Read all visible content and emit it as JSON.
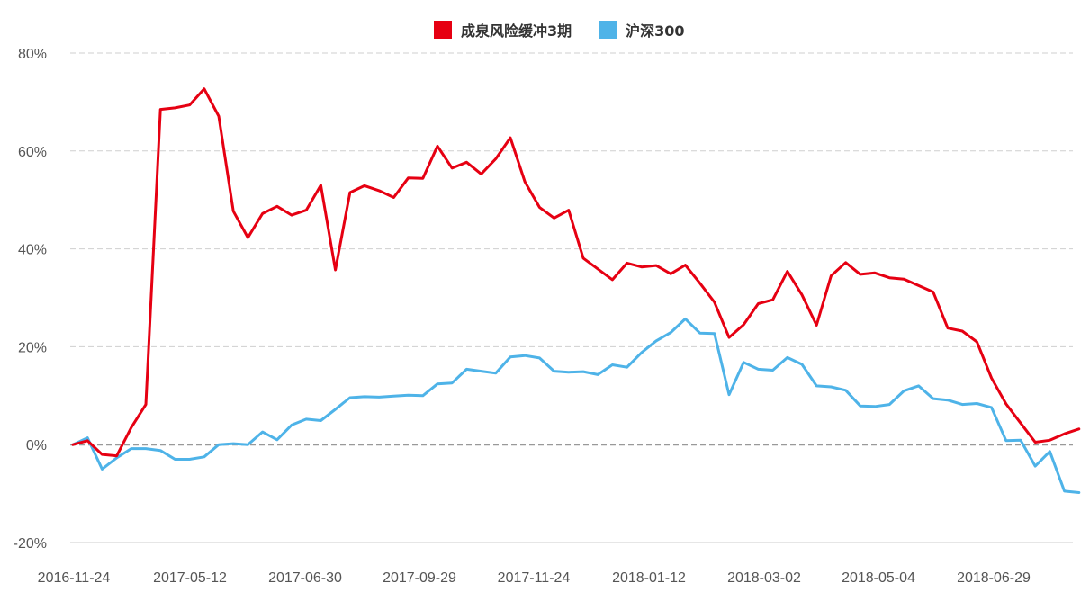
{
  "chart_data": {
    "type": "line",
    "title": "",
    "xlabel": "",
    "ylabel": "",
    "ylim": [
      -20,
      80
    ],
    "yticks": [
      -20,
      0,
      20,
      40,
      60,
      80
    ],
    "ytick_labels": [
      "-20%",
      "0%",
      "20%",
      "40%",
      "60%",
      "80%"
    ],
    "xtick_labels": [
      "2016-11-24",
      "2017-05-12",
      "2017-06-30",
      "2017-09-29",
      "2017-11-24",
      "2018-01-12",
      "2018-03-02",
      "2018-05-04",
      "2018-06-29"
    ],
    "grid": true,
    "legend_position": "top-center",
    "series": [
      {
        "name": "成泉风险缓冲3期",
        "color": "#e60012",
        "values": [
          0,
          0.8,
          -2,
          -2.3,
          3.5,
          8.2,
          68.5,
          68.8,
          69.4,
          72.7,
          67.1,
          47.7,
          42.3,
          47.2,
          48.7,
          46.9,
          47.9,
          53.0,
          35.7,
          51.5,
          52.9,
          51.9,
          50.5,
          54.5,
          54.4,
          61.0,
          56.5,
          57.7,
          55.3,
          58.4,
          62.7,
          53.7,
          48.5,
          46.3,
          47.9,
          38.1,
          35.9,
          33.7,
          37.1,
          36.3,
          36.6,
          34.9,
          36.7,
          33.0,
          29.1,
          21.9,
          24.5,
          28.8,
          29.6,
          35.4,
          30.6,
          24.4,
          34.5,
          37.2,
          34.8,
          35.1,
          34.1,
          33.8,
          32.5,
          31.2,
          23.8,
          23.2,
          21.0,
          13.6,
          8.3,
          4.4,
          0.5,
          0.9,
          2.2,
          3.2
        ]
      },
      {
        "name": "沪深300",
        "color": "#4eb3e8",
        "values": [
          0,
          1.4,
          -5.0,
          -2.7,
          -0.8,
          -0.8,
          -1.2,
          -3.0,
          -3.0,
          -2.5,
          0,
          0.2,
          0,
          2.6,
          1.0,
          4.0,
          5.2,
          4.9,
          7.2,
          9.6,
          9.8,
          9.7,
          9.9,
          10.1,
          10.0,
          12.4,
          12.6,
          15.4,
          15.0,
          14.6,
          17.9,
          18.2,
          17.7,
          15.0,
          14.8,
          14.9,
          14.3,
          16.3,
          15.8,
          18.8,
          21.2,
          22.9,
          25.7,
          22.8,
          22.7,
          10.2,
          16.8,
          15.4,
          15.2,
          17.8,
          16.4,
          12.0,
          11.8,
          11.1,
          7.9,
          7.8,
          8.2,
          11.0,
          12.0,
          9.4,
          9.1,
          8.2,
          8.4,
          7.6,
          0.8,
          0.9,
          -4.4,
          -1.4,
          -9.5,
          -9.8
        ]
      }
    ]
  }
}
